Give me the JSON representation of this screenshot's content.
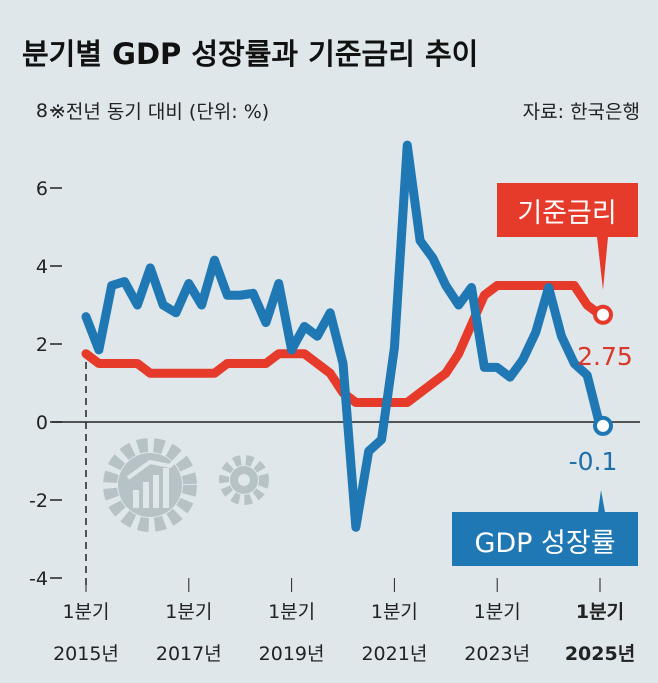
{
  "chart_data": {
    "type": "line",
    "title": "분기별 GDP 성장률과 기준금리 추이",
    "subtitle": "※전년 동기 대비 (단위: %)",
    "source": "자료: 한국은행",
    "ylim": [
      -4,
      8
    ],
    "yticks": [
      "8",
      "6",
      "4",
      "2",
      "0",
      "-2",
      "-4"
    ],
    "ytick_values": [
      8,
      6,
      4,
      2,
      0,
      -2,
      -4
    ],
    "xticks": [
      {
        "q": "1분기",
        "year": "2015년",
        "index": 0
      },
      {
        "q": "1분기",
        "year": "2017년",
        "index": 8
      },
      {
        "q": "1분기",
        "year": "2019년",
        "index": 16
      },
      {
        "q": "1분기",
        "year": "2021년",
        "index": 24
      },
      {
        "q": "1분기",
        "year": "2023년",
        "index": 32
      },
      {
        "q": "1분기",
        "year": "2025년",
        "index": 40
      }
    ],
    "x_range": "2015Q1–2025Q1 (quarterly)",
    "series": [
      {
        "name": "GDP 성장률",
        "color": "#1f78b4",
        "values": [
          2.7,
          1.85,
          3.5,
          3.6,
          3.0,
          3.95,
          3.0,
          2.8,
          3.55,
          3.0,
          4.15,
          3.25,
          3.25,
          3.3,
          2.55,
          3.55,
          1.85,
          2.45,
          2.2,
          2.8,
          1.5,
          -2.7,
          -0.75,
          -0.45,
          1.9,
          7.1,
          4.65,
          4.2,
          3.5,
          3.0,
          3.45,
          1.4,
          1.4,
          1.15,
          1.6,
          2.3,
          3.45,
          2.2,
          1.5,
          1.2,
          -0.1
        ],
        "last_label": "-0.1"
      },
      {
        "name": "기준금리",
        "color": "#e63a2b",
        "values": [
          1.75,
          1.5,
          1.5,
          1.5,
          1.5,
          1.25,
          1.25,
          1.25,
          1.25,
          1.25,
          1.25,
          1.5,
          1.5,
          1.5,
          1.5,
          1.75,
          1.75,
          1.75,
          1.5,
          1.25,
          0.75,
          0.5,
          0.5,
          0.5,
          0.5,
          0.5,
          0.75,
          1.0,
          1.25,
          1.75,
          2.5,
          3.25,
          3.5,
          3.5,
          3.5,
          3.5,
          3.5,
          3.5,
          3.5,
          3.0,
          2.75
        ],
        "last_label": "2.75"
      }
    ]
  }
}
